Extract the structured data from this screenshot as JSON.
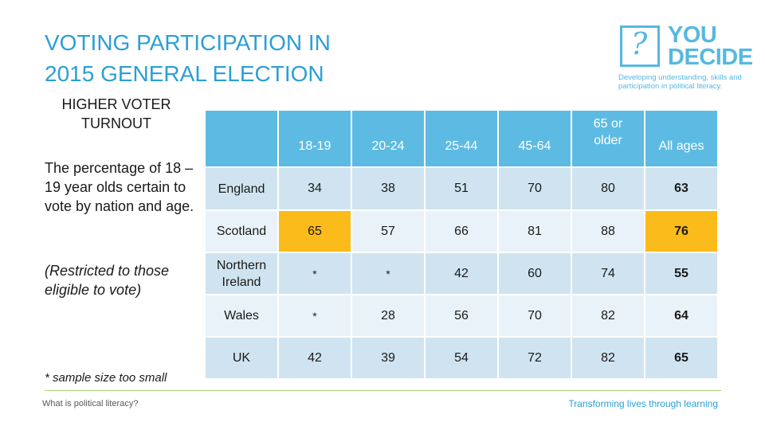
{
  "slide": {
    "title_line1": "VOTING PARTICIPATION IN",
    "title_line2": "2015 GENERAL ELECTION",
    "subheading_line1": "HIGHER VOTER",
    "subheading_line2": "TURNOUT",
    "description": "The percentage of 18 – 19 year olds certain to vote by nation and age.",
    "restriction": "(Restricted to those eligible to vote)",
    "footnote": "* sample size too small"
  },
  "logo": {
    "symbol": "?",
    "word1": "YOU",
    "word2": "DECIDE",
    "tagline": "Developing understanding, skills and participation in political literacy.",
    "color": "#56b8e0"
  },
  "table": {
    "headers": [
      "",
      "18-19",
      "20-24",
      "25-44",
      "45-64",
      "65 or older",
      "All ages"
    ],
    "rows": [
      {
        "nation": "England",
        "cells": [
          "34",
          "38",
          "51",
          "70",
          "80",
          "63"
        ]
      },
      {
        "nation": "Scotland",
        "cells": [
          "65",
          "57",
          "66",
          "81",
          "88",
          "76"
        ]
      },
      {
        "nation": "Northern Ireland",
        "cells": [
          "*",
          "*",
          "42",
          "60",
          "74",
          "55"
        ]
      },
      {
        "nation": "Wales",
        "cells": [
          "*",
          "28",
          "56",
          "70",
          "82",
          "64"
        ]
      },
      {
        "nation": "UK",
        "cells": [
          "42",
          "39",
          "54",
          "72",
          "82",
          "65"
        ]
      }
    ],
    "highlighted": [
      "Scotland 18-19",
      "Scotland All ages"
    ],
    "colors": {
      "header": "#5dbbe3",
      "row_dark": "#cfe4f0",
      "row_light": "#e9f2f8",
      "highlight": "#fbbb1a"
    }
  },
  "footer": {
    "left": "What is political literacy?",
    "right": "Transforming lives through learning"
  }
}
